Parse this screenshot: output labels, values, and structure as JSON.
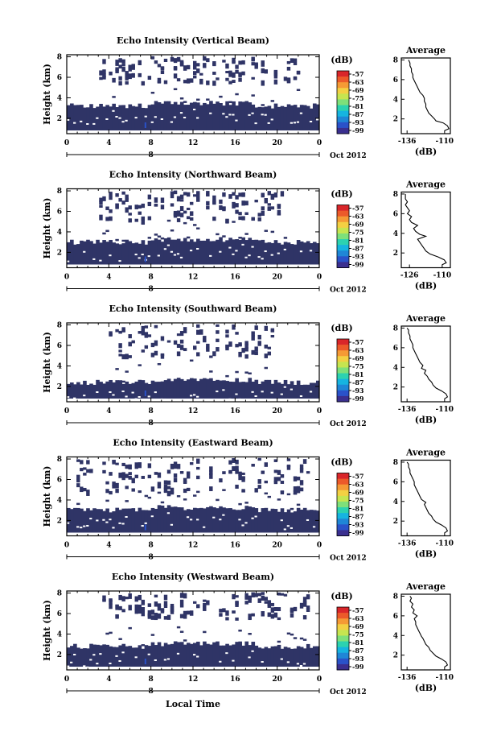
{
  "footer": {
    "xlabel": "Local Time"
  },
  "colors": {
    "background_fill": "#2f3466",
    "colormap": [
      "#3a2f8f",
      "#2a52c9",
      "#1f86d6",
      "#16b4e0",
      "#2cd2b0",
      "#7ee07a",
      "#c6e550",
      "#f3d043",
      "#f59a35",
      "#ec5a2a",
      "#d9262a"
    ]
  },
  "chart_data": [
    {
      "type": "heatmap",
      "title": "Echo Intensity (Vertical Beam)",
      "ylabel": "Height (km)",
      "xticks": [
        "0",
        "4",
        "8",
        "12",
        "16",
        "20",
        "0"
      ],
      "yticks": [
        "2",
        "4",
        "6",
        "8"
      ],
      "xlim": [
        0,
        24
      ],
      "ylim": [
        0.5,
        8.2
      ],
      "date_label": "8",
      "date_suffix": "Oct 2012",
      "colorbar": {
        "unit": "(dB)",
        "ticks": [
          "-57",
          "-63",
          "-69",
          "-75",
          "-81",
          "-87",
          "-93",
          "-99"
        ]
      },
      "profile": {
        "title": "Average",
        "xlabel": "(dB)",
        "xticks": [
          "-136",
          "-110"
        ],
        "yticks": [
          "2",
          "4",
          "6",
          "8"
        ],
        "xlim": [
          -140,
          -106
        ],
        "ylim": [
          0.5,
          8.2
        ],
        "height": [
          0.8,
          1.0,
          1.3,
          1.6,
          1.8,
          2.0,
          2.3,
          2.6,
          2.9,
          3.2,
          3.5,
          3.8,
          4.1,
          4.4,
          4.7,
          5.0,
          5.3,
          5.6,
          5.9,
          6.2,
          6.5,
          6.8,
          7.1,
          7.4,
          7.7,
          8.0
        ],
        "value": [
          -110,
          -107,
          -108,
          -111,
          -116,
          -117,
          -119,
          -121,
          -122,
          -123,
          -123,
          -124,
          -124,
          -125,
          -127,
          -128,
          -129,
          -130,
          -131,
          -132,
          -132,
          -133,
          -133,
          -134,
          -134,
          -135
        ]
      },
      "echo": {
        "cloud_top_km": 3.2,
        "upper_min_km": 5.6,
        "upper_max_km": 8.1,
        "active_hours": [
          3,
          22
        ]
      }
    },
    {
      "type": "heatmap",
      "title": "Echo Intensity (Northward Beam)",
      "ylabel": "Height (km)",
      "xticks": [
        "0",
        "4",
        "8",
        "12",
        "16",
        "20",
        "0"
      ],
      "yticks": [
        "2",
        "4",
        "6",
        "8"
      ],
      "xlim": [
        0,
        24
      ],
      "ylim": [
        0.5,
        8.2
      ],
      "date_label": "8",
      "date_suffix": "Oct 2012",
      "colorbar": {
        "unit": "(dB)",
        "ticks": [
          "-57",
          "-63",
          "-69",
          "-75",
          "-81",
          "-87",
          "-93",
          "-99"
        ]
      },
      "profile": {
        "title": "Average",
        "xlabel": "(dB)",
        "xticks": [
          "-126",
          "-110"
        ],
        "yticks": [
          "2",
          "4",
          "6",
          "8"
        ],
        "xlim": [
          -130,
          -106
        ],
        "ylim": [
          0.5,
          8.2
        ],
        "height": [
          0.8,
          1.0,
          1.3,
          1.6,
          1.9,
          2.2,
          2.5,
          2.8,
          3.1,
          3.4,
          3.7,
          3.9,
          4.2,
          4.5,
          4.8,
          5.1,
          5.4,
          5.7,
          6.0,
          6.3,
          6.6,
          6.9,
          7.2,
          7.5,
          7.8,
          8.0
        ],
        "value": [
          -110,
          -108,
          -109,
          -112,
          -116,
          -118,
          -119,
          -120,
          -121,
          -122,
          -118,
          -121,
          -123,
          -124,
          -122,
          -125,
          -126,
          -125,
          -127,
          -126,
          -127,
          -128,
          -127,
          -128,
          -128,
          -128
        ]
      },
      "echo": {
        "cloud_top_km": 3.0,
        "upper_min_km": 5.2,
        "upper_max_km": 8.1,
        "active_hours": [
          3,
          21
        ]
      }
    },
    {
      "type": "heatmap",
      "title": "Echo Intensity (Southward Beam)",
      "ylabel": "Height (km)",
      "xticks": [
        "0",
        "4",
        "8",
        "12",
        "16",
        "20",
        "0"
      ],
      "yticks": [
        "2",
        "4",
        "6",
        "8"
      ],
      "xlim": [
        0,
        24
      ],
      "ylim": [
        0.5,
        8.2
      ],
      "date_label": "8",
      "date_suffix": "Oct 2012",
      "colorbar": {
        "unit": "(dB)",
        "ticks": [
          "-57",
          "-63",
          "-69",
          "-75",
          "-81",
          "-87",
          "-93",
          "-99"
        ]
      },
      "profile": {
        "title": "Average",
        "xlabel": "(dB)",
        "xticks": [
          "-136",
          "-110"
        ],
        "yticks": [
          "2",
          "4",
          "6",
          "8"
        ],
        "xlim": [
          -140,
          -106
        ],
        "ylim": [
          0.5,
          8.2
        ],
        "height": [
          0.8,
          1.0,
          1.3,
          1.6,
          1.9,
          2.2,
          2.5,
          2.8,
          3.1,
          3.4,
          3.7,
          3.9,
          4.2,
          4.5,
          4.8,
          5.1,
          5.4,
          5.7,
          6.0,
          6.3,
          6.6,
          6.9,
          7.2,
          7.5,
          7.8,
          8.0
        ],
        "value": [
          -110,
          -108,
          -109,
          -112,
          -116,
          -118,
          -119,
          -121,
          -122,
          -124,
          -123,
          -126,
          -125,
          -127,
          -128,
          -129,
          -130,
          -131,
          -132,
          -132,
          -133,
          -134,
          -134,
          -135,
          -135,
          -136
        ]
      },
      "echo": {
        "cloud_top_km": 2.4,
        "upper_min_km": 5.0,
        "upper_max_km": 8.1,
        "active_hours": [
          4,
          20
        ]
      }
    },
    {
      "type": "heatmap",
      "title": "Echo Intensity (Eastward Beam)",
      "ylabel": "Height (km)",
      "xticks": [
        "0",
        "4",
        "8",
        "12",
        "16",
        "20",
        "0"
      ],
      "yticks": [
        "2",
        "4",
        "6",
        "8"
      ],
      "xlim": [
        0,
        24
      ],
      "ylim": [
        0.5,
        8.2
      ],
      "date_label": "8",
      "date_suffix": "Oct 2012",
      "colorbar": {
        "unit": "(dB)",
        "ticks": [
          "-57",
          "-63",
          "-69",
          "-75",
          "-81",
          "-87",
          "-93",
          "-99"
        ]
      },
      "profile": {
        "title": "Average",
        "xlabel": "(dB)",
        "xticks": [
          "-136",
          "-110"
        ],
        "yticks": [
          "2",
          "4",
          "6",
          "8"
        ],
        "xlim": [
          -140,
          -106
        ],
        "ylim": [
          0.5,
          8.2
        ],
        "height": [
          0.8,
          1.0,
          1.3,
          1.6,
          1.9,
          2.2,
          2.5,
          2.8,
          3.1,
          3.4,
          3.7,
          3.9,
          4.2,
          4.5,
          4.8,
          5.1,
          5.4,
          5.7,
          6.0,
          6.3,
          6.6,
          6.9,
          7.2,
          7.5,
          7.8,
          8.0
        ],
        "value": [
          -110,
          -108,
          -109,
          -112,
          -116,
          -118,
          -119,
          -121,
          -122,
          -123,
          -124,
          -123,
          -126,
          -127,
          -128,
          -129,
          -130,
          -131,
          -131,
          -132,
          -133,
          -134,
          -134,
          -135,
          -135,
          -136
        ]
      },
      "echo": {
        "cloud_top_km": 3.0,
        "upper_min_km": 4.8,
        "upper_max_km": 8.1,
        "active_hours": [
          1,
          23
        ]
      }
    },
    {
      "type": "heatmap",
      "title": "Echo Intensity (Westward Beam)",
      "ylabel": "Height (km)",
      "xticks": [
        "0",
        "4",
        "8",
        "12",
        "16",
        "20",
        "0"
      ],
      "yticks": [
        "2",
        "4",
        "6",
        "8"
      ],
      "xlim": [
        0,
        24
      ],
      "ylim": [
        0.5,
        8.2
      ],
      "date_label": "8",
      "date_suffix": "Oct 2012",
      "colorbar": {
        "unit": "(dB)",
        "ticks": [
          "-57",
          "-63",
          "-69",
          "-75",
          "-81",
          "-87",
          "-93",
          "-99"
        ]
      },
      "profile": {
        "title": "Average",
        "xlabel": "(dB)",
        "xticks": [
          "-136",
          "-110"
        ],
        "yticks": [
          "2",
          "4",
          "6",
          "8"
        ],
        "xlim": [
          -140,
          -106
        ],
        "ylim": [
          0.5,
          8.2
        ],
        "height": [
          0.8,
          1.0,
          1.3,
          1.6,
          1.9,
          2.2,
          2.5,
          2.8,
          3.1,
          3.4,
          3.7,
          3.9,
          4.2,
          4.5,
          4.8,
          5.1,
          5.4,
          5.7,
          6.0,
          6.3,
          6.6,
          6.9,
          7.2,
          7.5,
          7.8,
          8.0
        ],
        "value": [
          -110,
          -108,
          -109,
          -112,
          -116,
          -118,
          -120,
          -121,
          -123,
          -124,
          -125,
          -126,
          -127,
          -128,
          -129,
          -130,
          -130,
          -131,
          -129,
          -132,
          -131,
          -133,
          -132,
          -134,
          -133,
          -134
        ]
      },
      "echo": {
        "cloud_top_km": 2.8,
        "upper_min_km": 5.6,
        "upper_max_km": 8.1,
        "active_hours": [
          3,
          23
        ]
      }
    }
  ]
}
